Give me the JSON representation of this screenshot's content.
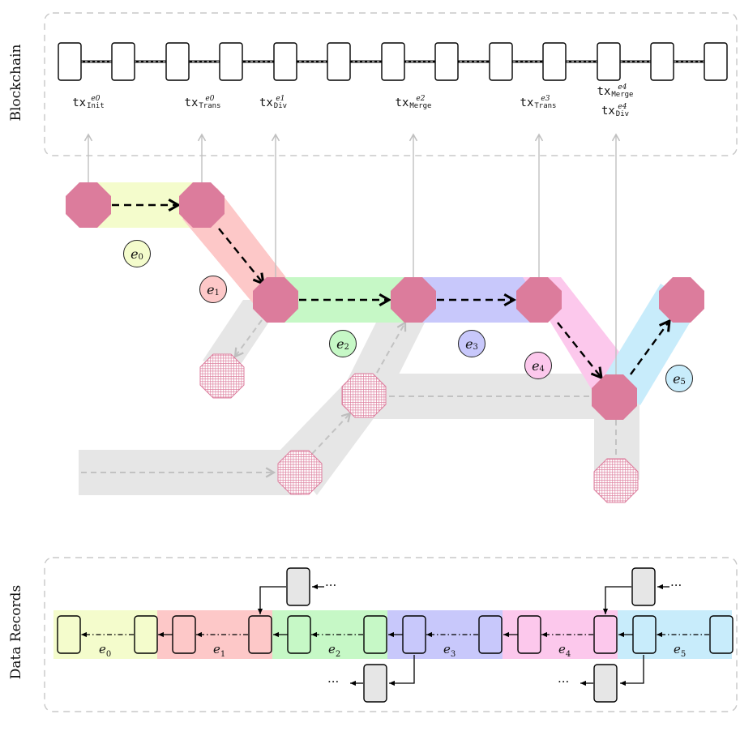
{
  "sections": {
    "blockchain": "Blockchain",
    "data_records": "Data Records"
  },
  "transactions": [
    {
      "id": "tx_init_e0",
      "base": "tx",
      "sup": "e0",
      "sub": "Init"
    },
    {
      "id": "tx_trans_e0",
      "base": "tx",
      "sup": "e0",
      "sub": "Trans"
    },
    {
      "id": "tx_div_e1",
      "base": "tx",
      "sup": "e1",
      "sub": "Div"
    },
    {
      "id": "tx_merge_e2",
      "base": "tx",
      "sup": "e2",
      "sub": "Merge"
    },
    {
      "id": "tx_trans_e3",
      "base": "tx",
      "sup": "e3",
      "sub": "Trans"
    },
    {
      "id": "tx_merge_e4",
      "base": "tx",
      "sup": "e4",
      "sub": "Merge"
    },
    {
      "id": "tx_div_e4",
      "base": "tx",
      "sup": "e4",
      "sub": "Div"
    }
  ],
  "epochs": [
    {
      "label": "e",
      "index": "0",
      "color": "#f4fccc"
    },
    {
      "label": "e",
      "index": "1",
      "color": "#fdc8c8"
    },
    {
      "label": "e",
      "index": "2",
      "color": "#c6f8c6"
    },
    {
      "label": "e",
      "index": "3",
      "color": "#c8c8fb"
    },
    {
      "label": "e",
      "index": "4",
      "color": "#fcc8ec"
    },
    {
      "label": "e",
      "index": "5",
      "color": "#c8ecfb"
    }
  ],
  "ellipsis": "···",
  "colors": {
    "node": "#dc7c9c",
    "gray_band": "#e6e6e6",
    "record_gray": "#e6e6e6",
    "dash_border": "#c8c8c8"
  }
}
